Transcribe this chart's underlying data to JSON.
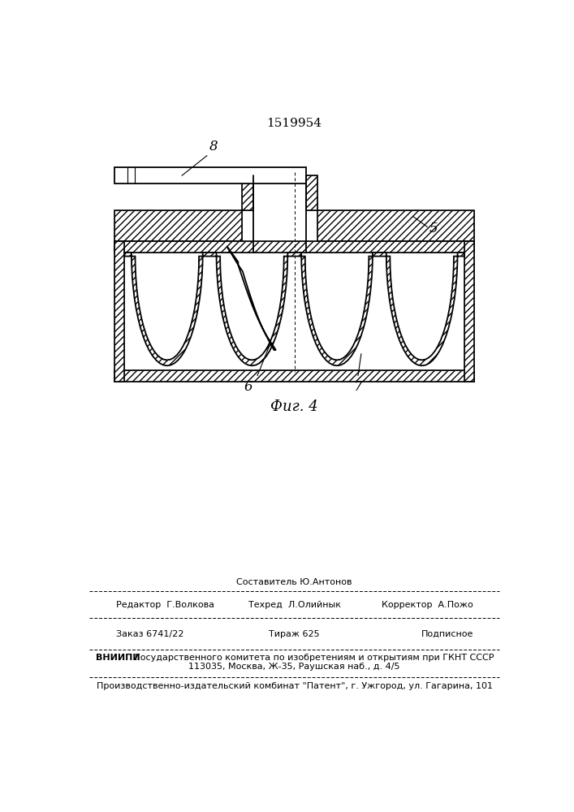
{
  "patent_number": "1519954",
  "figure_label": "Фиг. 4",
  "bg_color": "#ffffff",
  "line_color": "#000000",
  "hatch": "////",
  "footer": {
    "line1_center": "Составитель Ю.Антонов",
    "line2_left": "Редактор  Г.Волкова",
    "line2_center": "Техред  Л.Олийнык",
    "line2_right": "Корректор  А.Пожо",
    "line3_left": "Заказ 6741/22",
    "line3_center": "Тираж 625",
    "line3_right": "Подписное",
    "line4_bold": "ВНИИПИ",
    "line4_rest": "Государственного комитета по изобретениям и открытиям при ГКНТ СССР",
    "line5_center": "113035, Москва, Ж-35, Раушская наб., д. 4/5",
    "line6_center": "Производственно-издательский комбинат \"Патент\", г. Ужгород, ул. Гагарина, 101"
  }
}
